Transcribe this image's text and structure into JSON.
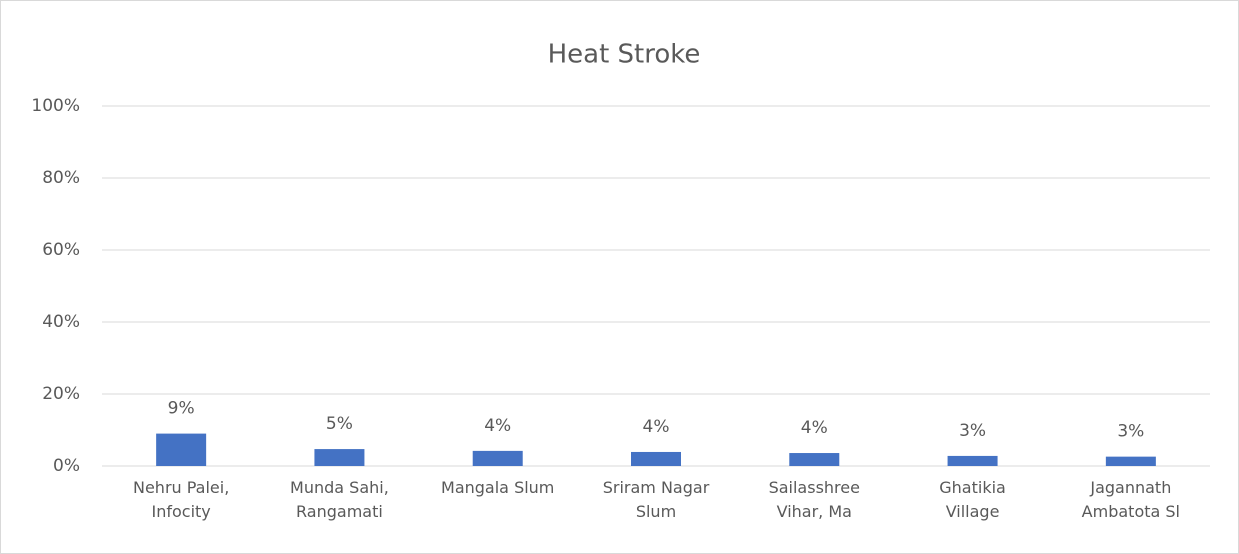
{
  "chart_data": {
    "type": "bar",
    "title": "Heat Stroke",
    "categories": [
      "Nehru Palei, Infocity",
      "Munda Sahi, Rangamati",
      "Mangala Slum",
      "Sriram Nagar Slum",
      "Sailasshree Vihar, Ma",
      "Ghatikia Village",
      "Jagannath Ambatota Sl"
    ],
    "values": [
      9,
      4.7,
      4.2,
      3.9,
      3.6,
      2.8,
      2.6
    ],
    "value_labels": [
      "9%",
      "5%",
      "4%",
      "4%",
      "4%",
      "3%",
      "3%"
    ],
    "color": "#4472c4",
    "ylim": [
      0,
      100
    ],
    "yticks": [
      {
        "value": 0,
        "label": "0%"
      },
      {
        "value": 20,
        "label": "20%"
      },
      {
        "value": 40,
        "label": "40%"
      },
      {
        "value": 60,
        "label": "60%"
      },
      {
        "value": 80,
        "label": "80%"
      },
      {
        "value": 100,
        "label": "100%"
      }
    ],
    "grid": true
  }
}
